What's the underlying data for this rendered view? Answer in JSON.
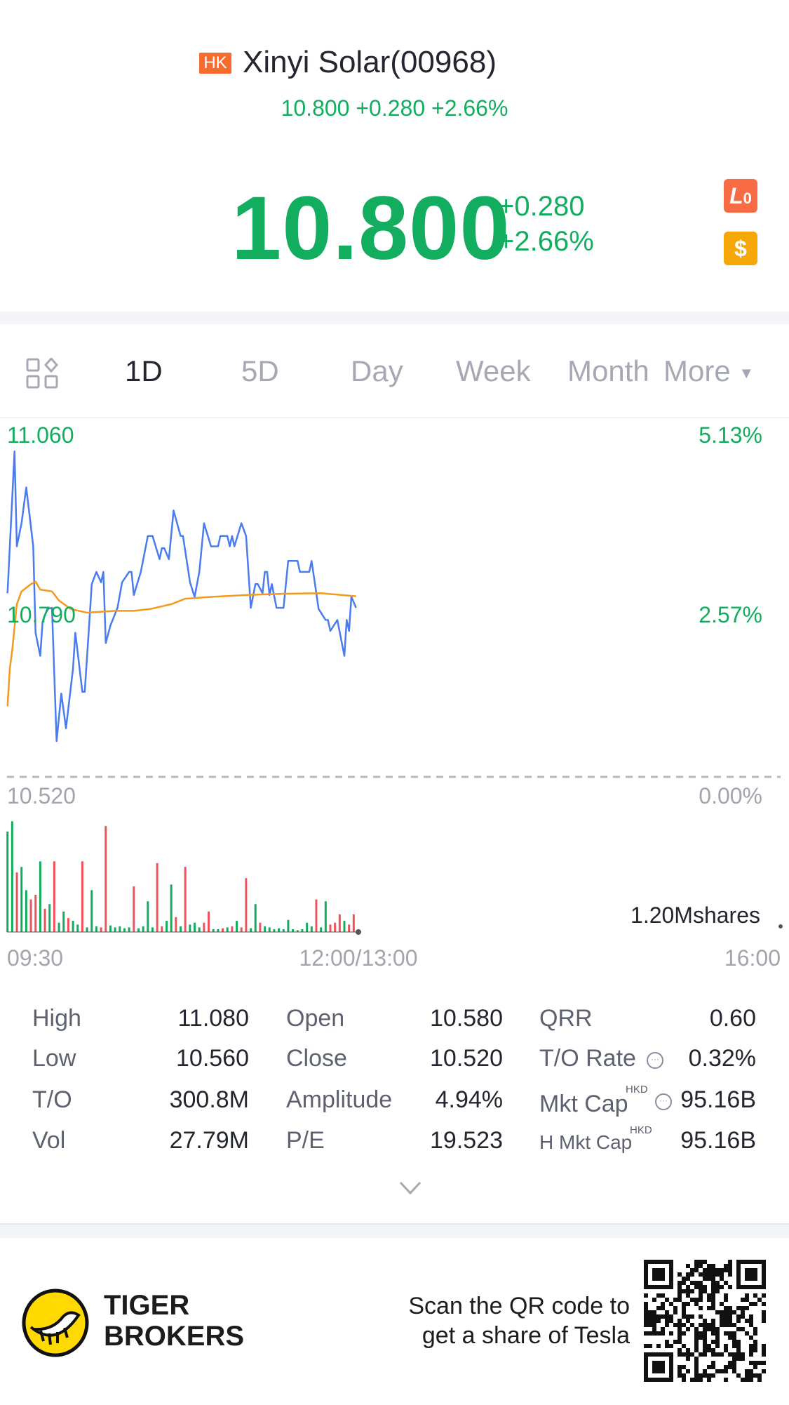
{
  "header": {
    "market_badge": "HK",
    "title": "Xinyi Solar(00968)",
    "subtitle": "10.800 +0.280 +2.66%",
    "price": "10.800",
    "change": "+0.280",
    "change_pct": "+2.66%",
    "badges": [
      {
        "icon": "level-zero-icon",
        "label": "L",
        "sub": "0",
        "color": "#f76b45"
      },
      {
        "icon": "dollar-icon",
        "label": "$",
        "color": "#f6a808"
      }
    ]
  },
  "tabs": {
    "grid_icon": "layout-grid-icon",
    "items": [
      {
        "label": "1D",
        "active": true
      },
      {
        "label": "5D"
      },
      {
        "label": "Day"
      },
      {
        "label": "Week"
      },
      {
        "label": "Month"
      }
    ],
    "more_label": "More"
  },
  "colors": {
    "up": "#13ad5f",
    "down": "#f0515a",
    "price_line": "#4a7cf0",
    "avg_line": "#f39a1e"
  },
  "chart_data": {
    "type": "line",
    "price_axis": {
      "labels": [
        "11.060",
        "10.790",
        "10.520"
      ],
      "ylim": [
        10.52,
        11.06
      ]
    },
    "pct_axis": {
      "labels": [
        "5.13%",
        "2.57%",
        "0.00%"
      ]
    },
    "prev_close": 10.52,
    "time_labels": [
      "09:30",
      "12:00/13:00",
      "16:00"
    ],
    "volume_label": "1.20Mshares",
    "volume_max_millions": 1.2,
    "series": [
      {
        "key": "price",
        "points": [
          [
            "09:30",
            10.822
          ],
          [
            "09:33",
            11.055
          ],
          [
            "09:34",
            10.899
          ],
          [
            "09:36",
            10.937
          ],
          [
            "09:38",
            10.996
          ],
          [
            "09:41",
            10.899
          ],
          [
            "09:42",
            10.757
          ],
          [
            "09:44",
            10.719
          ],
          [
            "09:45",
            10.775
          ],
          [
            "09:47",
            10.796
          ],
          [
            "09:49",
            10.798
          ],
          [
            "09:51",
            10.579
          ],
          [
            "09:53",
            10.657
          ],
          [
            "09:55",
            10.6
          ],
          [
            "09:58",
            10.698
          ],
          [
            "09:59",
            10.757
          ],
          [
            "10:02",
            10.66
          ],
          [
            "10:03",
            10.66
          ],
          [
            "10:05",
            10.775
          ],
          [
            "10:06",
            10.837
          ],
          [
            "10:08",
            10.857
          ],
          [
            "10:10",
            10.84
          ],
          [
            "10:11",
            10.857
          ],
          [
            "10:12",
            10.74
          ],
          [
            "10:14",
            10.769
          ],
          [
            "10:17",
            10.798
          ],
          [
            "10:19",
            10.84
          ],
          [
            "10:22",
            10.857
          ],
          [
            "10:23",
            10.857
          ],
          [
            "10:24",
            10.819
          ],
          [
            "10:27",
            10.857
          ],
          [
            "10:30",
            10.916
          ],
          [
            "10:32",
            10.916
          ],
          [
            "10:35",
            10.878
          ],
          [
            "10:36",
            10.896
          ],
          [
            "10:37",
            10.896
          ],
          [
            "10:39",
            10.878
          ],
          [
            "10:41",
            10.958
          ],
          [
            "10:44",
            10.916
          ],
          [
            "10:45",
            10.916
          ],
          [
            "10:48",
            10.84
          ],
          [
            "10:50",
            10.816
          ],
          [
            "10:52",
            10.857
          ],
          [
            "10:54",
            10.937
          ],
          [
            "10:57",
            10.899
          ],
          [
            "11:00",
            10.899
          ],
          [
            "11:01",
            10.916
          ],
          [
            "11:04",
            10.916
          ],
          [
            "11:05",
            10.899
          ],
          [
            "11:06",
            10.916
          ],
          [
            "11:07",
            10.899
          ],
          [
            "11:10",
            10.937
          ],
          [
            "11:12",
            10.916
          ],
          [
            "11:14",
            10.798
          ],
          [
            "11:16",
            10.837
          ],
          [
            "11:17",
            10.837
          ],
          [
            "11:19",
            10.822
          ],
          [
            "11:20",
            10.857
          ],
          [
            "11:21",
            10.857
          ],
          [
            "11:22",
            10.819
          ],
          [
            "11:23",
            10.837
          ],
          [
            "11:25",
            10.798
          ],
          [
            "11:28",
            10.798
          ],
          [
            "11:30",
            10.875
          ],
          [
            "11:34",
            10.875
          ],
          [
            "11:35",
            10.857
          ],
          [
            "11:39",
            10.857
          ],
          [
            "11:40",
            10.875
          ],
          [
            "11:43",
            10.796
          ],
          [
            "11:46",
            10.778
          ],
          [
            "11:47",
            10.778
          ],
          [
            "11:48",
            10.76
          ],
          [
            "11:51",
            10.778
          ],
          [
            "11:54",
            10.719
          ],
          [
            "11:55",
            10.778
          ],
          [
            "11:56",
            10.76
          ],
          [
            "11:57",
            10.816
          ],
          [
            "11:59",
            10.798
          ]
        ]
      },
      {
        "key": "average",
        "points": [
          [
            "09:30",
            10.636
          ],
          [
            "09:31",
            10.698
          ],
          [
            "09:32",
            10.728
          ],
          [
            "09:34",
            10.804
          ],
          [
            "09:36",
            10.825
          ],
          [
            "09:40",
            10.837
          ],
          [
            "09:42",
            10.841
          ],
          [
            "09:44",
            10.828
          ],
          [
            "09:49",
            10.825
          ],
          [
            "09:52",
            10.81
          ],
          [
            "09:57",
            10.796
          ],
          [
            "10:04",
            10.79
          ],
          [
            "10:16",
            10.793
          ],
          [
            "10:24",
            10.793
          ],
          [
            "10:31",
            10.796
          ],
          [
            "10:40",
            10.804
          ],
          [
            "10:46",
            10.813
          ],
          [
            "10:57",
            10.816
          ],
          [
            "11:12",
            10.819
          ],
          [
            "11:27",
            10.821
          ],
          [
            "11:44",
            10.822
          ],
          [
            "11:59",
            10.817
          ]
        ]
      }
    ],
    "volume": {
      "unit": "M shares",
      "times": [
        "09:30",
        "09:32",
        "09:34",
        "09:36",
        "09:38",
        "09:40",
        "09:42",
        "09:44",
        "09:46",
        "09:48",
        "09:50",
        "09:52",
        "09:54",
        "09:56",
        "09:58",
        "10:00",
        "10:02",
        "10:04",
        "10:06",
        "10:08",
        "10:10",
        "10:12",
        "10:14",
        "10:16",
        "10:18",
        "10:20",
        "10:22",
        "10:24",
        "10:26",
        "10:28",
        "10:30",
        "10:32",
        "10:34",
        "10:36",
        "10:38",
        "10:40",
        "10:42",
        "10:44",
        "10:46",
        "10:48",
        "10:50",
        "10:52",
        "10:54",
        "10:56",
        "10:58",
        "11:00",
        "11:02",
        "11:04",
        "11:06",
        "11:08",
        "11:10",
        "11:12",
        "11:14",
        "11:16",
        "11:18",
        "11:20",
        "11:22",
        "11:24",
        "11:26",
        "11:28",
        "11:30",
        "11:32",
        "11:34",
        "11:36",
        "11:38",
        "11:40",
        "11:42",
        "11:44",
        "11:46",
        "11:48",
        "11:50",
        "11:52",
        "11:54",
        "11:56",
        "11:58"
      ],
      "values": [
        1.08,
        1.19,
        0.64,
        0.7,
        0.45,
        0.35,
        0.4,
        0.76,
        0.25,
        0.3,
        0.76,
        0.1,
        0.22,
        0.15,
        0.12,
        0.08,
        0.76,
        0.05,
        0.45,
        0.06,
        0.05,
        1.14,
        0.07,
        0.05,
        0.06,
        0.04,
        0.05,
        0.49,
        0.04,
        0.06,
        0.33,
        0.05,
        0.74,
        0.06,
        0.12,
        0.51,
        0.16,
        0.06,
        0.7,
        0.08,
        0.1,
        0.05,
        0.1,
        0.22,
        0.03,
        0.03,
        0.04,
        0.05,
        0.06,
        0.12,
        0.05,
        0.58,
        0.04,
        0.3,
        0.1,
        0.06,
        0.05,
        0.03,
        0.04,
        0.03,
        0.13,
        0.03,
        0.02,
        0.03,
        0.1,
        0.06,
        0.35,
        0.05,
        0.33,
        0.08,
        0.1,
        0.19,
        0.12,
        0.08,
        0.19
      ],
      "direction": [
        "up",
        "up",
        "down",
        "up",
        "up",
        "down",
        "down",
        "up",
        "down",
        "up",
        "down",
        "up",
        "up",
        "down",
        "up",
        "up",
        "down",
        "up",
        "up",
        "up",
        "down",
        "down",
        "up",
        "up",
        "up",
        "up",
        "up",
        "down",
        "up",
        "up",
        "up",
        "up",
        "down",
        "down",
        "up",
        "up",
        "down",
        "up",
        "down",
        "up",
        "up",
        "up",
        "down",
        "down",
        "up",
        "up",
        "down",
        "up",
        "down",
        "up",
        "down",
        "down",
        "up",
        "up",
        "down",
        "up",
        "up",
        "up",
        "up",
        "up",
        "up",
        "up",
        "up",
        "up",
        "up",
        "up",
        "down",
        "up",
        "up",
        "down",
        "down",
        "down",
        "up",
        "down",
        "down"
      ]
    }
  },
  "stats": [
    [
      {
        "label": "High",
        "value": "11.080"
      },
      {
        "label": "Open",
        "value": "10.580"
      },
      {
        "label": "QRR",
        "value": "0.60"
      }
    ],
    [
      {
        "label": "Low",
        "value": "10.560"
      },
      {
        "label": "Close",
        "value": "10.520"
      },
      {
        "label": "T/O Rate",
        "value": "0.32%",
        "info": true
      }
    ],
    [
      {
        "label": "T/O",
        "value": "300.8M"
      },
      {
        "label": "Amplitude",
        "value": "4.94%"
      },
      {
        "label": "Mkt Cap",
        "sup": "HKD",
        "value": "95.16B",
        "info": true
      }
    ],
    [
      {
        "label": "Vol",
        "value": "27.79M"
      },
      {
        "label": "P/E",
        "value": "19.523"
      },
      {
        "label": "H Mkt Cap",
        "sup": "HKD",
        "value": "95.16B"
      }
    ]
  ],
  "expand_icon": "chevron-down-icon",
  "footer": {
    "brand_line1": "TIGER",
    "brand_line2": "BROKERS",
    "scan_line1": "Scan the QR code to",
    "scan_line2": "get a share of Tesla"
  }
}
